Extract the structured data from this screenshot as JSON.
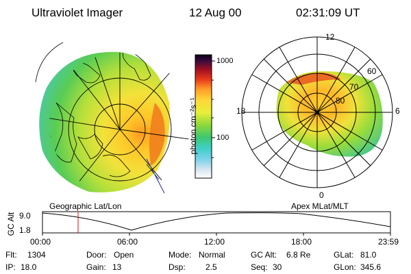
{
  "header": {
    "title": "Ultraviolet Imager",
    "date": "12 Aug 00",
    "time": "02:31:09 UT"
  },
  "colorbar": {
    "tick_labels": [
      "1000",
      "100"
    ],
    "unit": "photon cm⁻²s⁻¹"
  },
  "left_panel": {
    "label": "Geographic Lat/Lon"
  },
  "right_panel": {
    "label": "Apex MLat/MLT",
    "mlt_labels": {
      "top": "12",
      "left": "18",
      "right": "6",
      "bottom": "0"
    },
    "lat_labels": [
      "60",
      "70",
      "80"
    ]
  },
  "altitude_plot": {
    "ylabel": "GC Alt",
    "y_ticks": [
      "9.0",
      "1.8"
    ],
    "x_ticks": [
      "00:00",
      "06:00",
      "12:00",
      "18:00",
      "23:59"
    ],
    "marker_time": "02:31"
  },
  "info": {
    "flt_label": "Flt:",
    "flt_value": "1304",
    "ip_label": "IP:",
    "ip_value": "18.0",
    "door_label": "Door:",
    "door_value": "Open",
    "gain_label": "Gain:",
    "gain_value": "13",
    "mode_label": "Mode:",
    "mode_value": "Normal",
    "dsp_label": "Dsp:",
    "dsp_value": "2.5",
    "gcalt_label": "GC Alt:",
    "gcalt_value": "6.8 Re",
    "seq_label": "Seq:",
    "seq_value": "30",
    "glat_label": "GLat:",
    "glat_value": "81.0",
    "glon_label": "GLon:",
    "glon_value": "345.6"
  }
}
